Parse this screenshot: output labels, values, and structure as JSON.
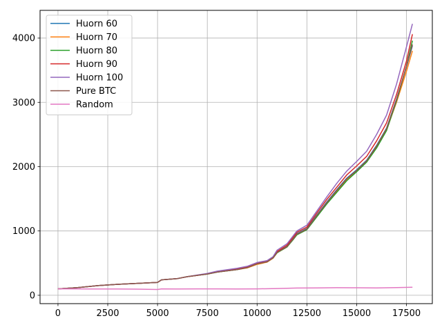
{
  "chart_data": {
    "type": "line",
    "title": "",
    "xlabel": "",
    "ylabel": "",
    "xlim": [
      -900,
      18800
    ],
    "ylim": [
      -130,
      4430
    ],
    "grid": true,
    "legend_position": "upper-left",
    "xticks": [
      0,
      2500,
      5000,
      7500,
      10000,
      12500,
      15000,
      17500
    ],
    "xtick_labels": [
      "0",
      "2500",
      "5000",
      "7500",
      "10000",
      "12500",
      "15000",
      "17500"
    ],
    "yticks": [
      0,
      1000,
      2000,
      3000,
      4000
    ],
    "ytick_labels": [
      "0",
      "1000",
      "2000",
      "3000",
      "4000"
    ],
    "series": [
      {
        "name": "Huorn 60",
        "color": "#1f77b4",
        "x": [
          0,
          1000,
          2000,
          3000,
          4000,
          5000,
          5200,
          6000,
          6500,
          7000,
          7500,
          8000,
          9000,
          9500,
          10000,
          10500,
          10800,
          11000,
          11500,
          11800,
          12000,
          12500,
          13000,
          13500,
          14000,
          14500,
          15000,
          15500,
          16000,
          16500,
          17000,
          17500,
          17800
        ],
        "y": [
          100,
          120,
          150,
          170,
          185,
          200,
          240,
          260,
          290,
          310,
          330,
          360,
          400,
          430,
          490,
          520,
          580,
          670,
          760,
          880,
          960,
          1040,
          1250,
          1450,
          1640,
          1820,
          1950,
          2100,
          2330,
          2600,
          3050,
          3550,
          3880
        ]
      },
      {
        "name": "Huorn 70",
        "color": "#ff7f0e",
        "x": [
          0,
          1000,
          2000,
          3000,
          4000,
          5000,
          5200,
          6000,
          6500,
          7000,
          7500,
          8000,
          9000,
          9500,
          10000,
          10500,
          10800,
          11000,
          11500,
          11800,
          12000,
          12500,
          13000,
          13500,
          14000,
          14500,
          15000,
          15500,
          16000,
          16500,
          17000,
          17500,
          17800
        ],
        "y": [
          100,
          120,
          150,
          170,
          185,
          200,
          240,
          260,
          290,
          310,
          330,
          360,
          400,
          425,
          480,
          515,
          575,
          660,
          750,
          870,
          950,
          1030,
          1230,
          1430,
          1620,
          1800,
          1930,
          2080,
          2300,
          2570,
          3000,
          3480,
          3800
        ]
      },
      {
        "name": "Huorn 80",
        "color": "#2ca02c",
        "x": [
          0,
          1000,
          2000,
          3000,
          4000,
          5000,
          5200,
          6000,
          6500,
          7000,
          7500,
          8000,
          9000,
          9500,
          10000,
          10500,
          10800,
          11000,
          11500,
          11800,
          12000,
          12500,
          13000,
          13500,
          14000,
          14500,
          15000,
          15500,
          16000,
          16500,
          17000,
          17500,
          17800
        ],
        "y": [
          100,
          120,
          150,
          170,
          185,
          200,
          240,
          260,
          290,
          310,
          330,
          360,
          400,
          430,
          490,
          520,
          580,
          660,
          750,
          860,
          940,
          1020,
          1220,
          1420,
          1600,
          1780,
          1920,
          2070,
          2290,
          2560,
          3020,
          3560,
          3960
        ]
      },
      {
        "name": "Huorn 90",
        "color": "#d62728",
        "x": [
          0,
          1000,
          2000,
          3000,
          4000,
          5000,
          5200,
          6000,
          6500,
          7000,
          7500,
          8000,
          9000,
          9500,
          10000,
          10500,
          10800,
          11000,
          11500,
          11800,
          12000,
          12500,
          13000,
          13500,
          14000,
          14500,
          15000,
          15500,
          16000,
          16500,
          17000,
          17500,
          17800
        ],
        "y": [
          100,
          120,
          150,
          170,
          185,
          200,
          240,
          260,
          290,
          310,
          335,
          370,
          410,
          440,
          500,
          530,
          590,
          680,
          780,
          900,
          980,
          1060,
          1280,
          1490,
          1680,
          1870,
          2010,
          2160,
          2400,
          2680,
          3120,
          3640,
          4060
        ]
      },
      {
        "name": "Huorn 100",
        "color": "#9467bd",
        "x": [
          0,
          1000,
          2000,
          3000,
          4000,
          5000,
          5200,
          6000,
          6500,
          7000,
          7500,
          8000,
          9000,
          9500,
          10000,
          10500,
          10800,
          11000,
          11500,
          11800,
          12000,
          12500,
          13000,
          13500,
          14000,
          14500,
          15000,
          15500,
          16000,
          16500,
          17000,
          17500,
          17800
        ],
        "y": [
          100,
          120,
          150,
          170,
          185,
          200,
          240,
          260,
          290,
          315,
          340,
          375,
          420,
          450,
          510,
          540,
          600,
          700,
          800,
          920,
          1000,
          1090,
          1310,
          1530,
          1740,
          1930,
          2080,
          2240,
          2500,
          2800,
          3280,
          3860,
          4220
        ]
      },
      {
        "name": "Pure BTC",
        "color": "#8c564b",
        "x": [
          0,
          1000,
          2000,
          3000,
          4000,
          5000,
          5200,
          6000,
          6500,
          7000,
          7500,
          8000,
          9000,
          9500,
          10000,
          10500,
          10800,
          11000,
          11500,
          11800,
          12000,
          12500,
          13000,
          13500,
          14000,
          14500,
          15000,
          15500,
          16000,
          16500,
          17000,
          17500,
          17800
        ],
        "y": [
          100,
          120,
          150,
          170,
          185,
          200,
          240,
          260,
          290,
          310,
          330,
          360,
          400,
          430,
          490,
          520,
          580,
          665,
          755,
          870,
          950,
          1030,
          1240,
          1440,
          1630,
          1810,
          1940,
          2090,
          2320,
          2590,
          3040,
          3560,
          3900
        ]
      },
      {
        "name": "Random",
        "color": "#e377c2",
        "x": [
          0,
          1000,
          2000,
          3000,
          4000,
          5000,
          5200,
          6000,
          7000,
          8000,
          9000,
          10000,
          11000,
          12000,
          13000,
          14000,
          15000,
          16000,
          17000,
          17800
        ],
        "y": [
          100,
          100,
          98,
          97,
          95,
          90,
          100,
          98,
          100,
          100,
          98,
          100,
          105,
          112,
          115,
          118,
          117,
          115,
          120,
          125
        ]
      }
    ]
  }
}
